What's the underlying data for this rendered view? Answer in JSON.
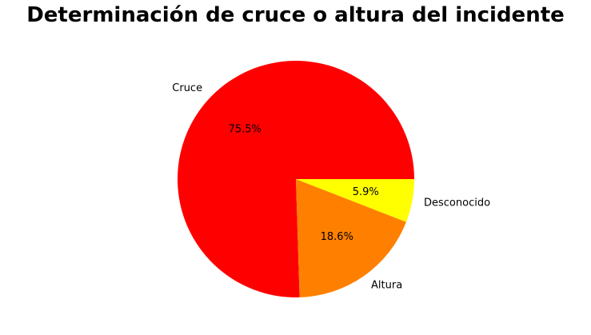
{
  "chart_data": {
    "type": "pie",
    "title": "Determinación de cruce o altura del incidente",
    "slices": [
      {
        "label": "Cruce",
        "value": 75.5,
        "pct_label": "75.5%",
        "color": "#ff0000"
      },
      {
        "label": "Altura",
        "value": 18.6,
        "pct_label": "18.6%",
        "color": "#ff8000"
      },
      {
        "label": "Desconocido",
        "value": 5.9,
        "pct_label": "5.9%",
        "color": "#ffff00"
      }
    ],
    "start_angle_deg": 0,
    "direction": "counterclockwise",
    "legend": "none"
  }
}
